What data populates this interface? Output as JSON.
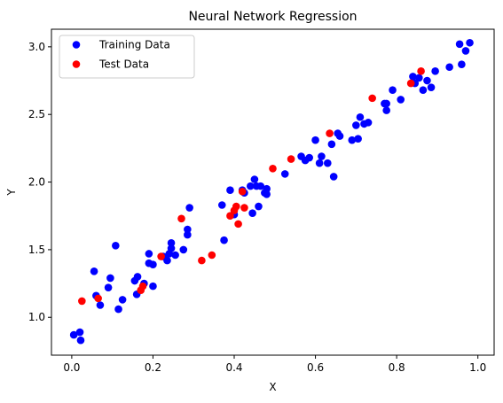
{
  "chart_data": {
    "type": "scatter",
    "title": "Neural Network Regression",
    "xlabel": "X",
    "ylabel": "Y",
    "xlim": [
      -0.05,
      1.04
    ],
    "ylim": [
      0.72,
      3.13
    ],
    "x_ticks": [
      "0.0",
      "0.2",
      "0.4",
      "0.6",
      "0.8",
      "1.0"
    ],
    "x_tick_values": [
      0.0,
      0.2,
      0.4,
      0.6,
      0.8,
      1.0
    ],
    "y_ticks": [
      "1.0",
      "1.5",
      "2.0",
      "2.5",
      "3.0"
    ],
    "y_tick_values": [
      1.0,
      1.5,
      2.0,
      2.5,
      3.0
    ],
    "grid": false,
    "legend_position": "upper-left",
    "series": [
      {
        "name": "Training Data",
        "color": "#0000ff",
        "points": [
          [
            0.005,
            0.87
          ],
          [
            0.02,
            0.89
          ],
          [
            0.022,
            0.83
          ],
          [
            0.055,
            1.34
          ],
          [
            0.06,
            1.16
          ],
          [
            0.07,
            1.09
          ],
          [
            0.09,
            1.22
          ],
          [
            0.095,
            1.29
          ],
          [
            0.108,
            1.53
          ],
          [
            0.115,
            1.06
          ],
          [
            0.125,
            1.13
          ],
          [
            0.155,
            1.27
          ],
          [
            0.16,
            1.17
          ],
          [
            0.162,
            1.3
          ],
          [
            0.178,
            1.25
          ],
          [
            0.19,
            1.47
          ],
          [
            0.19,
            1.4
          ],
          [
            0.2,
            1.23
          ],
          [
            0.2,
            1.39
          ],
          [
            0.225,
            1.45
          ],
          [
            0.235,
            1.42
          ],
          [
            0.24,
            1.47
          ],
          [
            0.245,
            1.55
          ],
          [
            0.245,
            1.51
          ],
          [
            0.255,
            1.46
          ],
          [
            0.275,
            1.5
          ],
          [
            0.285,
            1.61
          ],
          [
            0.285,
            1.65
          ],
          [
            0.29,
            1.81
          ],
          [
            0.37,
            1.83
          ],
          [
            0.375,
            1.57
          ],
          [
            0.39,
            1.94
          ],
          [
            0.4,
            1.76
          ],
          [
            0.42,
            1.94
          ],
          [
            0.425,
            1.92
          ],
          [
            0.44,
            1.97
          ],
          [
            0.445,
            1.77
          ],
          [
            0.45,
            2.02
          ],
          [
            0.455,
            1.97
          ],
          [
            0.46,
            1.82
          ],
          [
            0.465,
            1.97
          ],
          [
            0.475,
            1.92
          ],
          [
            0.48,
            1.95
          ],
          [
            0.48,
            1.91
          ],
          [
            0.525,
            2.06
          ],
          [
            0.565,
            2.19
          ],
          [
            0.575,
            2.16
          ],
          [
            0.585,
            2.18
          ],
          [
            0.6,
            2.31
          ],
          [
            0.61,
            2.14
          ],
          [
            0.615,
            2.19
          ],
          [
            0.63,
            2.14
          ],
          [
            0.64,
            2.28
          ],
          [
            0.645,
            2.04
          ],
          [
            0.655,
            2.36
          ],
          [
            0.66,
            2.34
          ],
          [
            0.69,
            2.31
          ],
          [
            0.7,
            2.42
          ],
          [
            0.705,
            2.32
          ],
          [
            0.71,
            2.48
          ],
          [
            0.72,
            2.43
          ],
          [
            0.73,
            2.44
          ],
          [
            0.77,
            2.58
          ],
          [
            0.775,
            2.58
          ],
          [
            0.775,
            2.53
          ],
          [
            0.79,
            2.68
          ],
          [
            0.81,
            2.61
          ],
          [
            0.84,
            2.78
          ],
          [
            0.845,
            2.73
          ],
          [
            0.855,
            2.77
          ],
          [
            0.865,
            2.68
          ],
          [
            0.875,
            2.75
          ],
          [
            0.885,
            2.7
          ],
          [
            0.895,
            2.82
          ],
          [
            0.93,
            2.85
          ],
          [
            0.955,
            3.02
          ],
          [
            0.96,
            2.87
          ],
          [
            0.97,
            2.97
          ],
          [
            0.98,
            3.03
          ]
        ]
      },
      {
        "name": "Test Data",
        "color": "#ff0000",
        "points": [
          [
            0.025,
            1.12
          ],
          [
            0.065,
            1.14
          ],
          [
            0.17,
            1.2
          ],
          [
            0.175,
            1.23
          ],
          [
            0.22,
            1.45
          ],
          [
            0.27,
            1.73
          ],
          [
            0.32,
            1.42
          ],
          [
            0.345,
            1.46
          ],
          [
            0.39,
            1.75
          ],
          [
            0.4,
            1.79
          ],
          [
            0.405,
            1.82
          ],
          [
            0.41,
            1.69
          ],
          [
            0.42,
            1.93
          ],
          [
            0.425,
            1.81
          ],
          [
            0.495,
            2.1
          ],
          [
            0.54,
            2.17
          ],
          [
            0.635,
            2.36
          ],
          [
            0.74,
            2.62
          ],
          [
            0.835,
            2.73
          ],
          [
            0.86,
            2.82
          ]
        ]
      }
    ]
  }
}
